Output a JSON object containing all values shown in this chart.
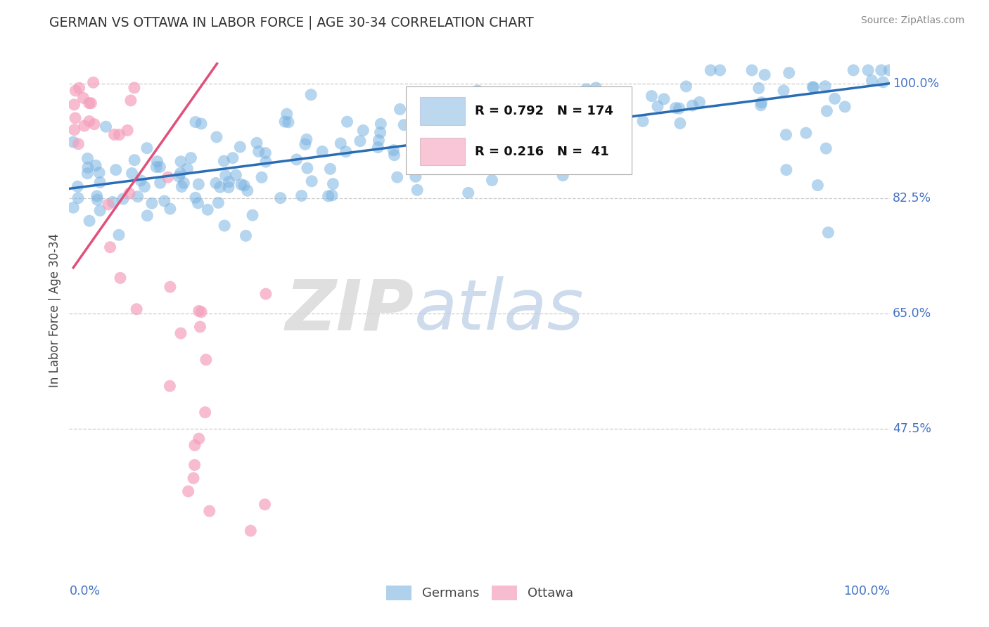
{
  "title": "GERMAN VS OTTAWA IN LABOR FORCE | AGE 30-34 CORRELATION CHART",
  "source": "Source: ZipAtlas.com",
  "ylabel": "In Labor Force | Age 30-34",
  "legend_entries": [
    {
      "label": "Germans",
      "R": "0.792",
      "N": "174",
      "color": "#7ab3e0",
      "line_color": "#2a6db5"
    },
    {
      "label": "Ottawa",
      "R": "0.216",
      "N": "41",
      "color": "#f4a0bc",
      "line_color": "#e0507a"
    }
  ],
  "background_color": "#ffffff",
  "grid_color": "#cccccc",
  "title_color": "#333333",
  "tick_label_color": "#4472c4",
  "ytick_values": [
    0.475,
    0.65,
    0.825,
    1.0
  ],
  "ytick_labels": [
    "47.5%",
    "65.0%",
    "82.5%",
    "100.0%"
  ],
  "ymin": 0.25,
  "ymax": 1.06,
  "xmin": 0.0,
  "xmax": 1.0,
  "blue_line": [
    0.0,
    0.84,
    1.0,
    1.0
  ],
  "pink_line_x": [
    0.005,
    0.18
  ],
  "pink_line_y": [
    0.72,
    1.03
  ]
}
